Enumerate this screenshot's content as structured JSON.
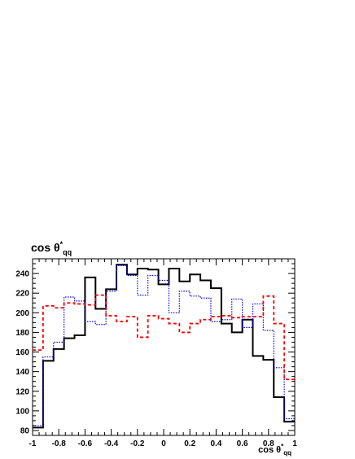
{
  "chart_data": {
    "type": "histogram",
    "title": "cos θ*qq",
    "title_parts": {
      "base": "cos θ",
      "sup": "*",
      "sub": "qq"
    },
    "xlabel": "cos θqq",
    "xlabel_parts": {
      "base": "cos θ",
      "sup": "*",
      "sub": "qq"
    },
    "ylabel": "",
    "xlim": [
      -1,
      1
    ],
    "ylim": [
      75,
      255
    ],
    "grid": false,
    "bin_edges": [
      -1.0,
      -0.92,
      -0.84,
      -0.76,
      -0.68,
      -0.6,
      -0.52,
      -0.44,
      -0.36,
      -0.28,
      -0.2,
      -0.12,
      -0.04,
      0.04,
      0.12,
      0.2,
      0.28,
      0.36,
      0.44,
      0.52,
      0.6,
      0.68,
      0.76,
      0.84,
      0.92,
      1.0
    ],
    "x_ticks": [
      "-1",
      "-0.8",
      "-0.6",
      "-0.4",
      "-0.2",
      "0",
      "0.2",
      "0.4",
      "0.6",
      "0.8",
      "1"
    ],
    "x_tick_values": [
      -1,
      -0.8,
      -0.6,
      -0.4,
      -0.2,
      0,
      0.2,
      0.4,
      0.6,
      0.8,
      1
    ],
    "y_ticks": [
      "80",
      "100",
      "120",
      "140",
      "160",
      "180",
      "200",
      "220",
      "240"
    ],
    "y_tick_values": [
      80,
      100,
      120,
      140,
      160,
      180,
      200,
      220,
      240
    ],
    "series": [
      {
        "style": "solid",
        "color": "#000000",
        "values": [
          83,
          151,
          163,
          174,
          177,
          236,
          204,
          224,
          249,
          239,
          245,
          244,
          229,
          245,
          232,
          239,
          233,
          225,
          189,
          180,
          193,
          156,
          152,
          114,
          89
        ]
      },
      {
        "style": "dotted",
        "color": "#0000ff",
        "values": [
          85,
          155,
          170,
          216,
          212,
          191,
          188,
          222,
          248,
          238,
          218,
          238,
          233,
          200,
          222,
          217,
          215,
          191,
          193,
          214,
          185,
          209,
          182,
          144,
          92
        ]
      },
      {
        "style": "dashed",
        "color": "#ff0000",
        "values": [
          162,
          207,
          205,
          210,
          209,
          208,
          218,
          197,
          191,
          196,
          175,
          197,
          194,
          189,
          180,
          189,
          193,
          196,
          197,
          195,
          196,
          196,
          217,
          189,
          132
        ]
      }
    ]
  }
}
